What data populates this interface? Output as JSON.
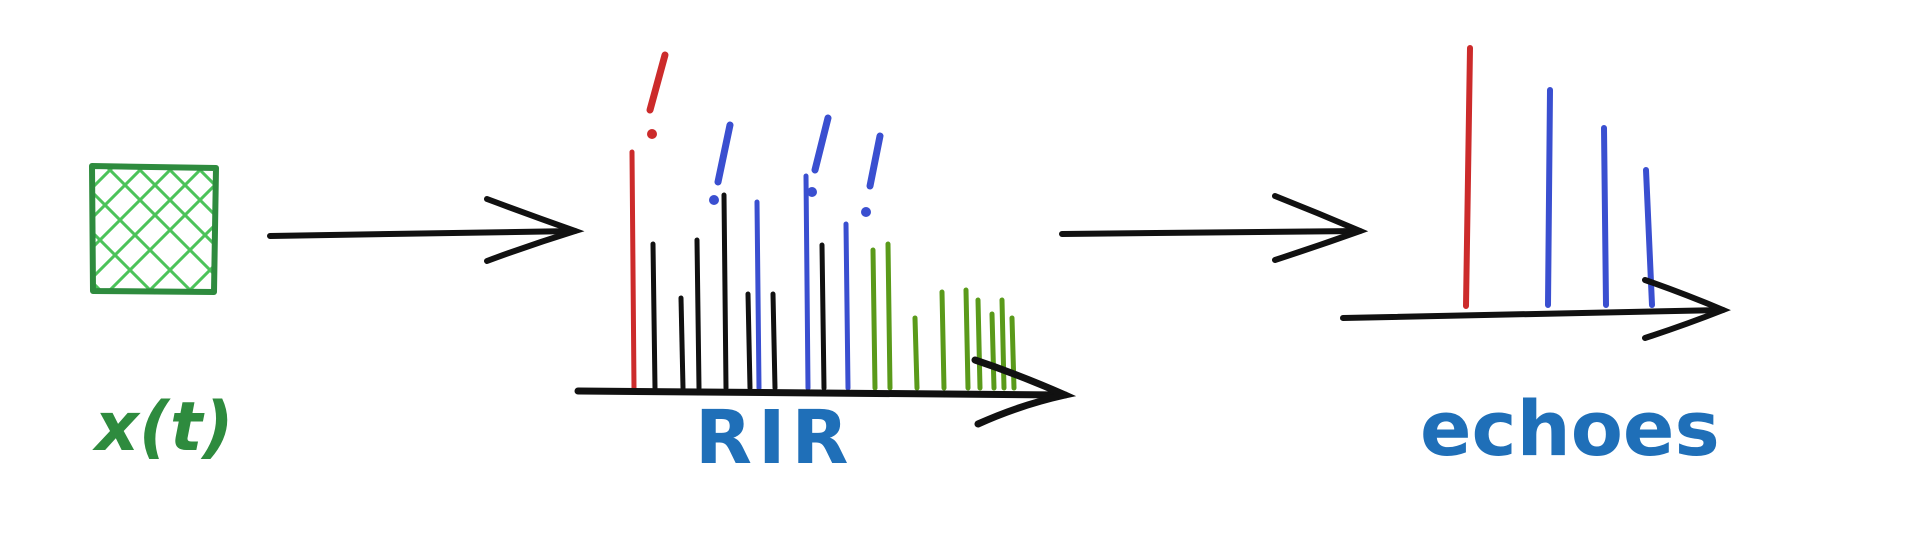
{
  "labels": {
    "signal": "x(t)",
    "rir": "RIR",
    "echoes": "echoes"
  },
  "colors": {
    "signal_green": "#2e8b3e",
    "hatch_green": "#4cc35a",
    "label_blue": "#1f6fb8",
    "red": "#cc2b2b",
    "blue": "#3a4fd0",
    "black": "#111111",
    "olive": "#5a9a1a"
  },
  "rir_spike_colors": [
    "red",
    "black",
    "black",
    "black",
    "black",
    "blue",
    "black",
    "black",
    "blue",
    "black",
    "blue",
    "olive",
    "olive",
    "olive",
    "olive",
    "olive",
    "olive",
    "olive",
    "olive",
    "olive"
  ],
  "echo_spike_colors": [
    "red",
    "blue",
    "blue",
    "blue"
  ],
  "exclamation_marks": {
    "rir": [
      "red",
      "blue",
      "blue",
      "blue"
    ],
    "count": 4
  }
}
